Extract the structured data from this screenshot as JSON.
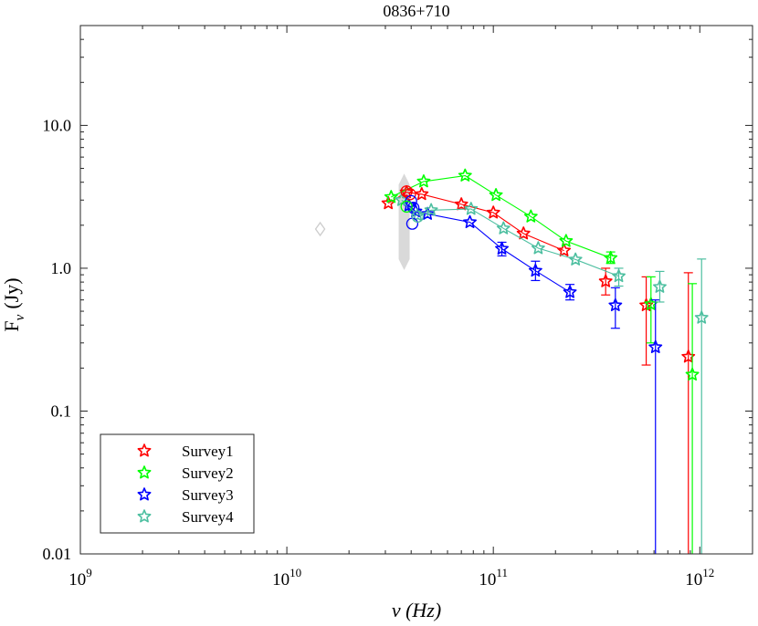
{
  "chart_data": {
    "type": "scatter",
    "title": "0836+710",
    "xlabel": "ν (Hz)",
    "ylabel_main": "F",
    "ylabel_sub": "ν",
    "ylabel_unit": "(Jy)",
    "x_scale": "log",
    "y_scale": "log",
    "xlim": [
      1000000000.0,
      1800000000000.0
    ],
    "ylim": [
      0.01,
      50
    ],
    "x_ticks": [
      {
        "value": 1000000000.0,
        "base": "10",
        "exp": "9"
      },
      {
        "value": 10000000000.0,
        "base": "10",
        "exp": "10"
      },
      {
        "value": 100000000000.0,
        "base": "10",
        "exp": "11"
      },
      {
        "value": 1000000000000.0,
        "base": "10",
        "exp": "12"
      }
    ],
    "y_ticks": [
      {
        "value": 0.01,
        "label": "0.01"
      },
      {
        "value": 0.1,
        "label": "0.1"
      },
      {
        "value": 1,
        "label": "1.0"
      },
      {
        "value": 10,
        "label": "10.0"
      }
    ],
    "legend_position": "bottom-left",
    "series": [
      {
        "name": "Survey1",
        "color": "#ff0000",
        "points": [
          {
            "x": 31000000000.0,
            "y": 2.85
          },
          {
            "x": 38000000000.0,
            "y": 3.4
          },
          {
            "x": 45000000000.0,
            "y": 3.3
          },
          {
            "x": 70000000000.0,
            "y": 2.8
          },
          {
            "x": 100000000000.0,
            "y": 2.45
          },
          {
            "x": 140000000000.0,
            "y": 1.75
          },
          {
            "x": 220000000000.0,
            "y": 1.33
          },
          {
            "x": 350000000000.0,
            "y": 0.81,
            "ylo": 0.65,
            "yhi": 1.0
          },
          {
            "x": 550000000000.0,
            "y": 0.55,
            "ylo": 0.21,
            "yhi": 0.87
          },
          {
            "x": 880000000000.0,
            "y": 0.24,
            "ylo": 0.01,
            "yhi": 0.93
          }
        ],
        "fit": [
          {
            "x": 31000000000.0,
            "y": 2.85
          },
          {
            "x": 38000000000.0,
            "y": 3.4
          },
          {
            "x": 45000000000.0,
            "y": 3.3
          },
          {
            "x": 70000000000.0,
            "y": 2.8
          },
          {
            "x": 100000000000.0,
            "y": 2.45
          },
          {
            "x": 140000000000.0,
            "y": 1.75
          },
          {
            "x": 220000000000.0,
            "y": 1.33
          }
        ]
      },
      {
        "name": "Survey2",
        "color": "#00ff00",
        "points": [
          {
            "x": 32000000000.0,
            "y": 3.15
          },
          {
            "x": 46000000000.0,
            "y": 4.05
          },
          {
            "x": 73000000000.0,
            "y": 4.45
          },
          {
            "x": 103000000000.0,
            "y": 3.25
          },
          {
            "x": 152000000000.0,
            "y": 2.3
          },
          {
            "x": 225000000000.0,
            "y": 1.55
          },
          {
            "x": 370000000000.0,
            "y": 1.18,
            "ylo": 1.08,
            "yhi": 1.3
          },
          {
            "x": 580000000000.0,
            "y": 0.56,
            "ylo": 0.3,
            "yhi": 0.87
          },
          {
            "x": 920000000000.0,
            "y": 0.18,
            "ylo": 0.01,
            "yhi": 0.78
          }
        ],
        "fit": [
          {
            "x": 32000000000.0,
            "y": 3.15
          },
          {
            "x": 46000000000.0,
            "y": 4.05
          },
          {
            "x": 73000000000.0,
            "y": 4.45
          },
          {
            "x": 103000000000.0,
            "y": 3.25
          },
          {
            "x": 152000000000.0,
            "y": 2.3
          },
          {
            "x": 225000000000.0,
            "y": 1.55
          },
          {
            "x": 370000000000.0,
            "y": 1.18
          }
        ]
      },
      {
        "name": "Survey3",
        "color": "#0000ff",
        "points": [
          {
            "x": 39000000000.0,
            "y": 2.75
          },
          {
            "x": 42000000000.0,
            "y": 2.5
          },
          {
            "x": 48000000000.0,
            "y": 2.4
          },
          {
            "x": 77000000000.0,
            "y": 2.1
          },
          {
            "x": 110000000000.0,
            "y": 1.37,
            "ylo": 1.22,
            "yhi": 1.52
          },
          {
            "x": 160000000000.0,
            "y": 0.96,
            "ylo": 0.82,
            "yhi": 1.12
          },
          {
            "x": 235000000000.0,
            "y": 0.68,
            "ylo": 0.6,
            "yhi": 0.77
          },
          {
            "x": 390000000000.0,
            "y": 0.55,
            "ylo": 0.38,
            "yhi": 0.73
          },
          {
            "x": 610000000000.0,
            "y": 0.28,
            "ylo": 0.01,
            "yhi": 0.6
          }
        ],
        "fit": [
          {
            "x": 39000000000.0,
            "y": 2.75
          },
          {
            "x": 42000000000.0,
            "y": 2.5
          },
          {
            "x": 48000000000.0,
            "y": 2.4
          },
          {
            "x": 77000000000.0,
            "y": 2.1
          },
          {
            "x": 110000000000.0,
            "y": 1.37
          },
          {
            "x": 160000000000.0,
            "y": 0.96
          },
          {
            "x": 235000000000.0,
            "y": 0.68
          }
        ]
      },
      {
        "name": "Survey4",
        "color": "#4dbfa0",
        "points": [
          {
            "x": 36000000000.0,
            "y": 3.0
          },
          {
            "x": 43000000000.0,
            "y": 2.35
          },
          {
            "x": 50000000000.0,
            "y": 2.55
          },
          {
            "x": 78000000000.0,
            "y": 2.6
          },
          {
            "x": 112000000000.0,
            "y": 1.9
          },
          {
            "x": 165000000000.0,
            "y": 1.38
          },
          {
            "x": 250000000000.0,
            "y": 1.15
          },
          {
            "x": 405000000000.0,
            "y": 0.88,
            "ylo": 0.75,
            "yhi": 1.0
          },
          {
            "x": 640000000000.0,
            "y": 0.74,
            "ylo": 0.58,
            "yhi": 0.95
          },
          {
            "x": 1020000000000.0,
            "y": 0.45,
            "ylo": 0.01,
            "yhi": 1.16
          }
        ],
        "fit": [
          {
            "x": 36000000000.0,
            "y": 3.0
          },
          {
            "x": 43000000000.0,
            "y": 2.35
          },
          {
            "x": 50000000000.0,
            "y": 2.55
          },
          {
            "x": 78000000000.0,
            "y": 2.6
          },
          {
            "x": 112000000000.0,
            "y": 1.9
          },
          {
            "x": 165000000000.0,
            "y": 1.38
          },
          {
            "x": 250000000000.0,
            "y": 1.15
          },
          {
            "x": 405000000000.0,
            "y": 0.88
          }
        ]
      }
    ],
    "circle_points": [
      {
        "x": 38000000000.0,
        "y": 3.45,
        "color": "#ff0000"
      },
      {
        "x": 39500000000.0,
        "y": 3.3,
        "color": "#ff0000"
      },
      {
        "x": 40000000000.0,
        "y": 2.95,
        "color": "#0000ff"
      },
      {
        "x": 40500000000.0,
        "y": 2.05,
        "color": "#0000ff"
      },
      {
        "x": 41000000000.0,
        "y": 2.65,
        "color": "#0000ff"
      },
      {
        "x": 38000000000.0,
        "y": 2.7,
        "color": "#00ff00"
      },
      {
        "x": 43000000000.0,
        "y": 2.3,
        "color": "#4dbfa0"
      }
    ],
    "gray_points": [
      {
        "x": 14500000000.0,
        "y": 1.88,
        "shape": "diamond"
      }
    ],
    "gray_bar": {
      "x": 37000000000.0,
      "ylo": 0.97,
      "yhi": 4.6,
      "color": "#d9d9d9"
    }
  }
}
